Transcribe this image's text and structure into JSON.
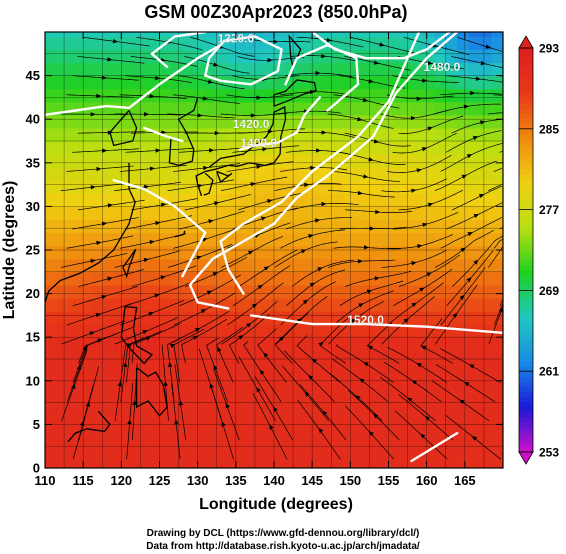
{
  "title": "GSM 00Z30Apr2023 (850.0hPa)",
  "xlabel": "Longitude (degrees)",
  "ylabel": "Latitude  (degrees)",
  "credits": {
    "line1": "Drawing by DCL (https://www.gfd-dennou.org/library/dcl/)",
    "line2": "Data from http://database.rish.kyoto-u.ac.jp/arch/jmadata/"
  },
  "chart_data": {
    "type": "heatmap",
    "title": "GSM 00Z30Apr2023 (850.0hPa)",
    "xlabel": "Longitude (degrees)",
    "ylabel": "Latitude  (degrees)",
    "xlim": [
      110,
      170
    ],
    "ylim": [
      0,
      50
    ],
    "x_ticks": [
      110,
      115,
      120,
      125,
      130,
      135,
      140,
      145,
      150,
      155,
      160,
      165
    ],
    "y_ticks": [
      0,
      5,
      10,
      15,
      20,
      25,
      30,
      35,
      40,
      45
    ],
    "grid": true,
    "colorbar": {
      "min": 253,
      "max": 293,
      "ticks": [
        253,
        261,
        269,
        277,
        285,
        293
      ],
      "colors": [
        "#d010c8",
        "#1a1ad8",
        "#1a8ae6",
        "#20c8c0",
        "#20d020",
        "#b8e010",
        "#f0d010",
        "#f08a10",
        "#e83818",
        "#dd2020"
      ],
      "placement": "right"
    },
    "contour_labels": [
      {
        "text": "1520.0",
        "lon": 152,
        "lat": 16.5
      },
      {
        "text": "1480.0",
        "lon": 162,
        "lat": 45.5
      },
      {
        "text": "1420.0",
        "lon": 137,
        "lat": 39
      },
      {
        "text": "1400.0",
        "lon": 138,
        "lat": 36.8
      },
      {
        "text": "1320.0",
        "lon": 135,
        "lat": 48.8
      }
    ]
  },
  "colors": {
    "contour": "#ffffff",
    "streamline": "#000000",
    "coast": "#000000"
  }
}
